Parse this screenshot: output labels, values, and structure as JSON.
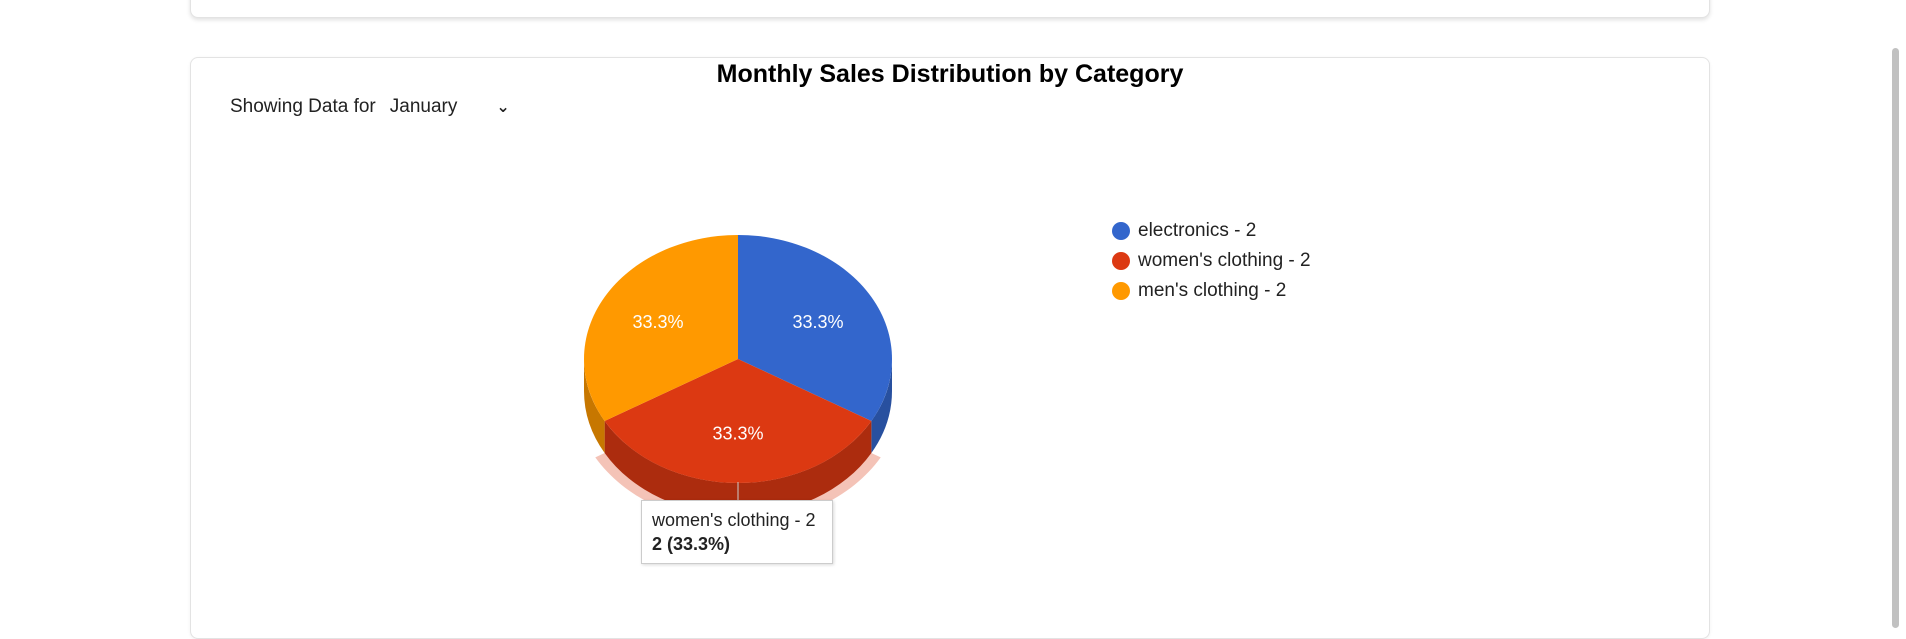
{
  "filter": {
    "label": "Showing Data for",
    "selected_month": "January"
  },
  "chart_data": {
    "type": "pie",
    "title": "Monthly Sales Distribution by Category",
    "is_3d": true,
    "legend_position": "right",
    "slices": [
      {
        "label": "electronics - 2",
        "value": 2,
        "percent_label": "33.3%",
        "color": "#3366cc"
      },
      {
        "label": "women's clothing - 2",
        "value": 2,
        "percent_label": "33.3%",
        "color": "#dc3912"
      },
      {
        "label": "men's clothing - 2",
        "value": 2,
        "percent_label": "33.3%",
        "color": "#ff9900"
      }
    ],
    "tooltip": {
      "line1": "women's clothing - 2",
      "line2": "2 (33.3%)"
    }
  }
}
